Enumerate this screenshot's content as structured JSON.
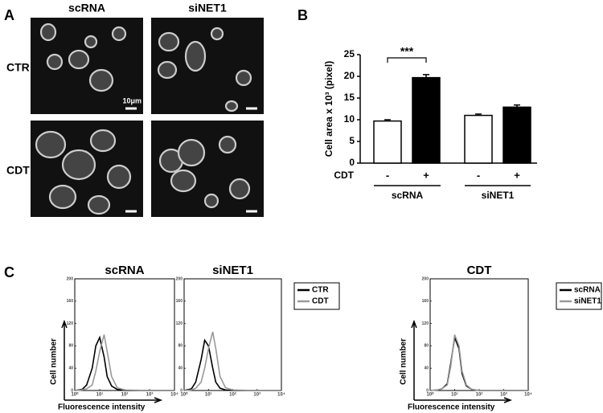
{
  "panel_labels": [
    "A",
    "B",
    "C"
  ],
  "microscopy": {
    "columns": [
      "scRNA",
      "siNET1"
    ],
    "rows": [
      "CTR",
      "CDT"
    ],
    "scale_bar": "10μm"
  },
  "chart_data": [
    {
      "type": "bar",
      "ylabel": "Cell area x 10³ (pixel)",
      "category_axis_label": "CDT",
      "categories": [
        "-",
        "+",
        "-",
        "+"
      ],
      "values": [
        9.7,
        19.7,
        11,
        12.9
      ],
      "errors": [
        0.3,
        0.7,
        0.3,
        0.5
      ],
      "colors": [
        "#ffffff",
        "#000000",
        "#ffffff",
        "#000000"
      ],
      "groups": [
        "scRNA",
        "siNET1"
      ],
      "annotation": "***",
      "ylim": [
        0,
        25
      ],
      "yticks": [
        0,
        5,
        10,
        15,
        20,
        25
      ]
    },
    {
      "type": "line",
      "title": "scRNA",
      "ylabel": "Cell number",
      "xlabel": "Fluorescence intensity",
      "xscale": "log",
      "legend": "none",
      "x": [
        1,
        2,
        3,
        5,
        7,
        10,
        15,
        20,
        30,
        50,
        100,
        1000,
        10000
      ],
      "series": [
        {
          "name": "CTR",
          "color": "#000000",
          "values": [
            0,
            2,
            10,
            40,
            80,
            95,
            60,
            25,
            8,
            2,
            0,
            0,
            0
          ]
        },
        {
          "name": "CDT",
          "color": "#999999",
          "values": [
            0,
            1,
            3,
            10,
            35,
            70,
            100,
            70,
            25,
            5,
            1,
            0,
            0
          ]
        }
      ],
      "xlim": [
        1,
        10000
      ],
      "xticks": [
        {
          "value": 1,
          "label": "10⁰"
        },
        {
          "value": 10,
          "label": "10¹"
        },
        {
          "value": 100,
          "label": "10²"
        },
        {
          "value": 1000,
          "label": "10³"
        },
        {
          "value": 10000,
          "label": "10⁴"
        }
      ],
      "ylim": [
        0,
        200
      ],
      "yticks": [
        0,
        40,
        80,
        120,
        160,
        200
      ]
    },
    {
      "type": "line",
      "title": "siNET1",
      "xscale": "log",
      "legend": "outside-right",
      "x": [
        1,
        2,
        3,
        5,
        7,
        10,
        15,
        20,
        30,
        50,
        100,
        1000,
        10000
      ],
      "series": [
        {
          "name": "CTR",
          "color": "#000000",
          "values": [
            0,
            3,
            15,
            55,
            90,
            80,
            40,
            15,
            4,
            1,
            0,
            0,
            0
          ]
        },
        {
          "name": "CDT",
          "color": "#999999",
          "values": [
            0,
            1,
            4,
            15,
            40,
            75,
            105,
            75,
            25,
            5,
            1,
            0,
            0
          ]
        }
      ],
      "xlim": [
        1,
        10000
      ],
      "xticks": [
        {
          "value": 1,
          "label": "10⁰"
        },
        {
          "value": 10,
          "label": "10¹"
        },
        {
          "value": 100,
          "label": "10²"
        },
        {
          "value": 1000,
          "label": "10³"
        },
        {
          "value": 10000,
          "label": "10⁴"
        }
      ],
      "ylim": [
        0,
        200
      ],
      "yticks": [
        0,
        40,
        80,
        120,
        160,
        200
      ]
    },
    {
      "type": "line",
      "title": "CDT",
      "ylabel": "Cell number",
      "xlabel": "Fluorescence intensity",
      "xscale": "log",
      "legend": "outside-right",
      "x": [
        1,
        2,
        3,
        5,
        7,
        10,
        15,
        20,
        30,
        50,
        100,
        1000,
        10000
      ],
      "series": [
        {
          "name": "scRNA",
          "color": "#000000",
          "values": [
            0,
            1,
            3,
            12,
            50,
            95,
            75,
            30,
            8,
            2,
            0,
            0,
            0
          ]
        },
        {
          "name": "siNET1",
          "color": "#999999",
          "values": [
            0,
            1,
            3,
            10,
            45,
            100,
            80,
            35,
            10,
            2,
            0,
            0,
            0
          ]
        }
      ],
      "xlim": [
        1,
        10000
      ],
      "xticks": [
        {
          "value": 1,
          "label": "10⁰"
        },
        {
          "value": 10,
          "label": "10¹"
        },
        {
          "value": 100,
          "label": "10²"
        },
        {
          "value": 1000,
          "label": "10³"
        },
        {
          "value": 10000,
          "label": "10⁴"
        }
      ],
      "ylim": [
        0,
        200
      ],
      "yticks": [
        0,
        40,
        80,
        120,
        160,
        200
      ]
    }
  ]
}
